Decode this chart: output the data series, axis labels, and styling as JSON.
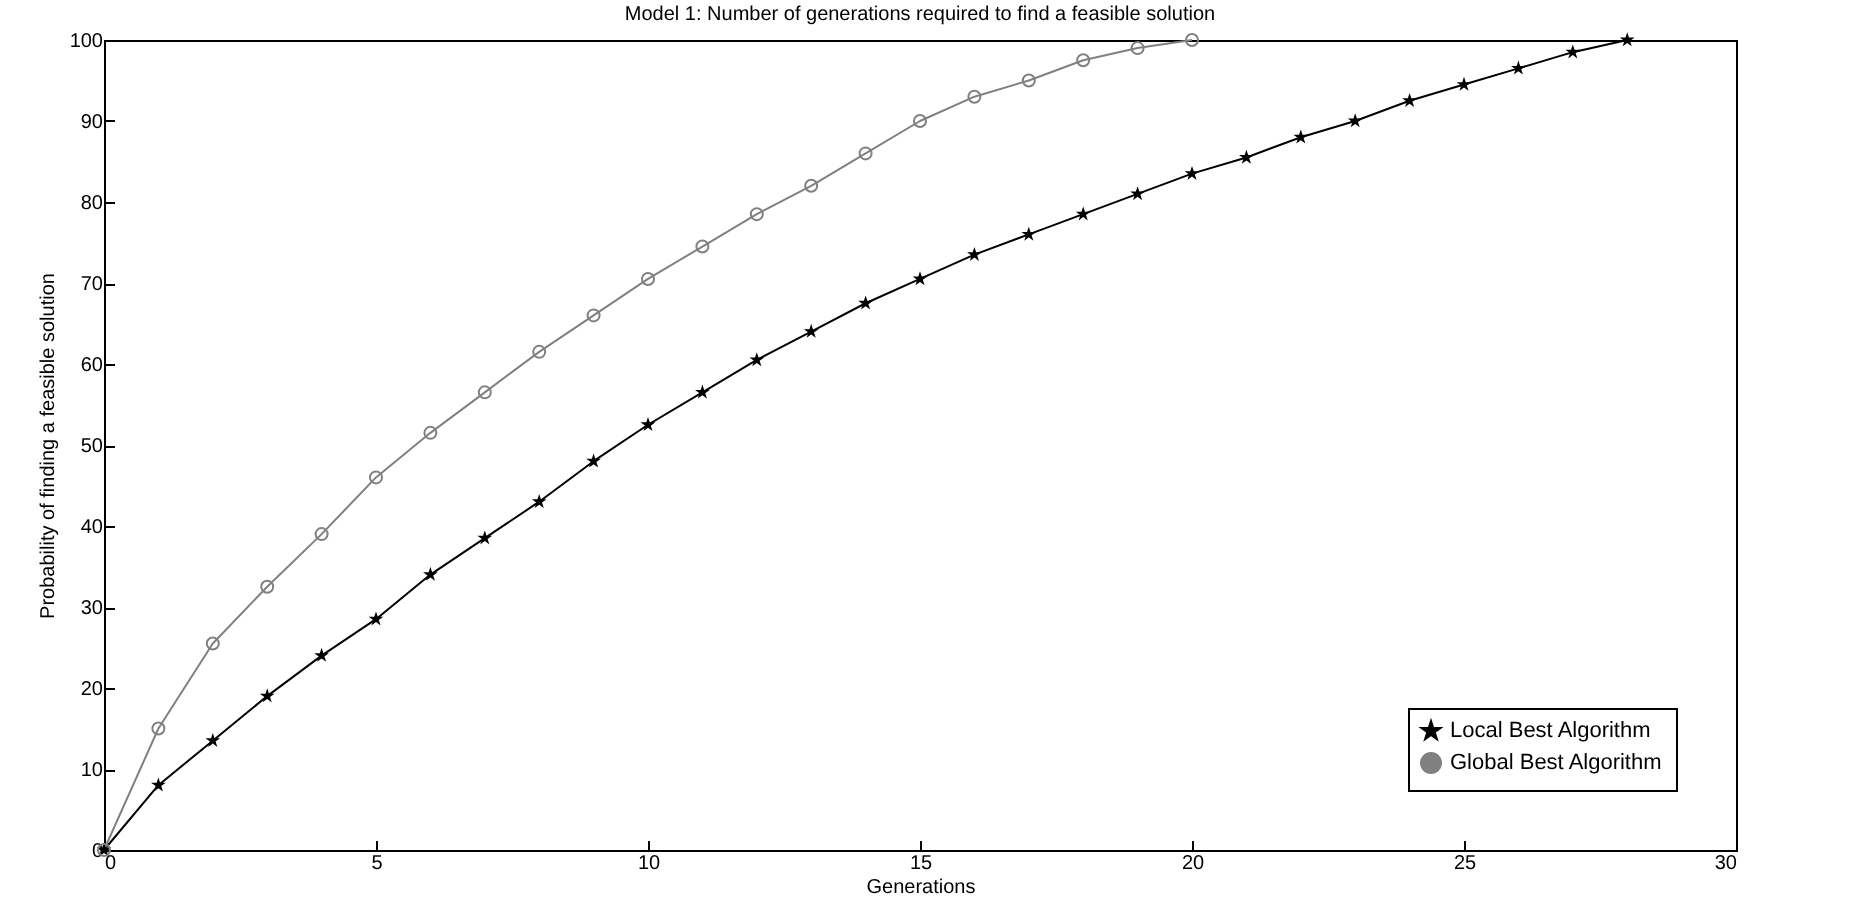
{
  "chart_data": {
    "type": "line",
    "title": "Model 1: Number of generations required to find a feasible solution",
    "xlabel": "Generations",
    "ylabel": "Probability of finding a feasible solution",
    "xlim": [
      0,
      30
    ],
    "xticks": [
      0,
      5,
      10,
      15,
      20,
      25,
      30
    ],
    "ylim": [
      0,
      100
    ],
    "yticks": [
      0,
      10,
      20,
      30,
      40,
      50,
      60,
      70,
      80,
      90,
      100
    ],
    "grid": false,
    "legend": "bottom right",
    "line_style": "solid",
    "series": [
      {
        "name": "Local Best Algorithm",
        "color": "#000000",
        "marker": "star",
        "x": [
          0,
          1,
          2,
          3,
          4,
          5,
          6,
          7,
          8,
          9,
          10,
          11,
          12,
          13,
          14,
          15,
          16,
          17,
          18,
          19,
          20,
          21,
          22,
          23,
          24,
          25,
          26,
          27,
          28
        ],
        "values": [
          0,
          8,
          13.5,
          19,
          24,
          28.5,
          34,
          38.5,
          43,
          48,
          52.5,
          56.5,
          60.5,
          64,
          67.5,
          70.5,
          73.5,
          76,
          78.5,
          81,
          83.5,
          85.5,
          88,
          90,
          92.5,
          94.5,
          96.5,
          98.5,
          100
        ]
      },
      {
        "name": "Global Best Algorithm",
        "color": "#808080",
        "marker": "circle",
        "x": [
          0,
          1,
          2,
          3,
          4,
          5,
          6,
          7,
          8,
          9,
          10,
          11,
          12,
          13,
          14,
          15,
          16,
          17,
          18,
          19,
          20
        ],
        "values": [
          0,
          15,
          25.5,
          32.5,
          39,
          46,
          51.5,
          56.5,
          61.5,
          66,
          70.5,
          74.5,
          78.5,
          82,
          86,
          90,
          93,
          95,
          97.5,
          99,
          100
        ]
      }
    ]
  }
}
